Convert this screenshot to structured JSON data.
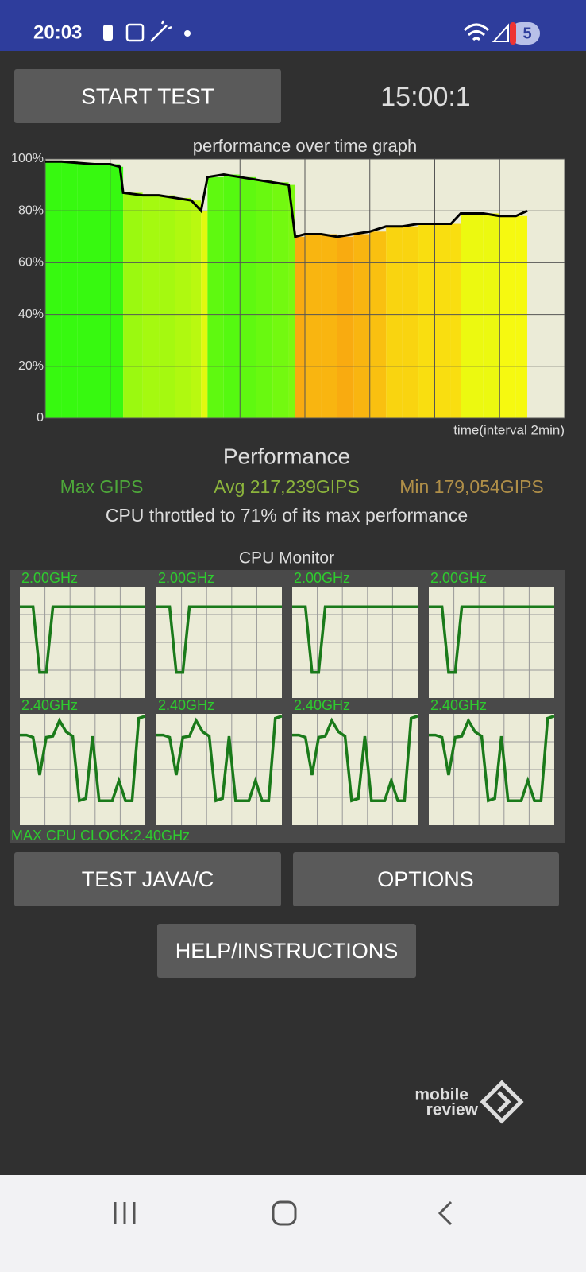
{
  "status_bar": {
    "time": "20:03",
    "badge": "5"
  },
  "buttons": {
    "start": "START TEST",
    "java": "TEST JAVA/C",
    "options": "OPTIONS",
    "help": "HELP/INSTRUCTIONS"
  },
  "timer": "15:00:1",
  "chart_data": {
    "type": "line",
    "title": "performance over time graph",
    "x_label": "time(interval 2min)",
    "x": [
      0,
      0.5,
      1,
      1.5,
      2,
      2.3,
      2.4,
      3,
      3.5,
      4,
      4.5,
      4.8,
      5,
      5.5,
      6,
      6.5,
      7,
      7.5,
      7.7,
      8,
      8.5,
      9,
      9.5,
      10,
      10.5,
      11,
      11.5,
      12,
      12.5,
      12.8,
      13.5,
      14,
      14.5,
      14.85
    ],
    "values": [
      99,
      99,
      98.5,
      98,
      98,
      97,
      87,
      86,
      86,
      85,
      84,
      80,
      93,
      94,
      93,
      92,
      91,
      90,
      70,
      71,
      71,
      70,
      71,
      72,
      74,
      74,
      75,
      75,
      75,
      79,
      79,
      78,
      78,
      80
    ],
    "xlim": [
      0,
      16
    ],
    "xticks": [
      0,
      2,
      4,
      6,
      8,
      10,
      12,
      14,
      16
    ],
    "ylim": [
      0,
      100
    ],
    "yticks": [
      0,
      {
        "value": 20,
        "label": "20%"
      },
      {
        "value": 40,
        "label": "40%"
      },
      {
        "value": 60,
        "label": "60%"
      },
      {
        "value": 80,
        "label": "80%"
      },
      {
        "value": 100,
        "label": "100%"
      }
    ],
    "grid": true,
    "color": "#000000"
  },
  "performance": {
    "title": "Performance",
    "max": "Max GIPS",
    "avg": "Avg 217,239GIPS",
    "min": "Min 179,054GIPS",
    "summary": "CPU throttled to 71% of its max performance"
  },
  "cpu_monitor": {
    "title": "CPU Monitor",
    "max_clock": "MAX CPU CLOCK:2.40GHz",
    "ylim": [
      0,
      100
    ],
    "color": "#1a7a1a",
    "cores": [
      {
        "label": "2.00GHz",
        "values": [
          82,
          82,
          82,
          23,
          23,
          82,
          82,
          82,
          82,
          82,
          82,
          82,
          82,
          82,
          82,
          82,
          82,
          82,
          82,
          82
        ]
      },
      {
        "label": "2.00GHz",
        "values": [
          82,
          82,
          82,
          23,
          23,
          82,
          82,
          82,
          82,
          82,
          82,
          82,
          82,
          82,
          82,
          82,
          82,
          82,
          82,
          82
        ]
      },
      {
        "label": "2.00GHz",
        "values": [
          82,
          82,
          82,
          23,
          23,
          82,
          82,
          82,
          82,
          82,
          82,
          82,
          82,
          82,
          82,
          82,
          82,
          82,
          82,
          82
        ]
      },
      {
        "label": "2.00GHz",
        "values": [
          82,
          82,
          82,
          23,
          23,
          82,
          82,
          82,
          82,
          82,
          82,
          82,
          82,
          82,
          82,
          82,
          82,
          82,
          82,
          82
        ]
      },
      {
        "label": "2.40GHz",
        "values": [
          81,
          81,
          79,
          45,
          79,
          80,
          94,
          84,
          80,
          22,
          24,
          80,
          22,
          22,
          22,
          40,
          22,
          22,
          96,
          98
        ]
      },
      {
        "label": "2.40GHz",
        "values": [
          81,
          81,
          79,
          45,
          79,
          80,
          94,
          84,
          80,
          22,
          24,
          80,
          22,
          22,
          22,
          40,
          22,
          22,
          96,
          98
        ]
      },
      {
        "label": "2.40GHz",
        "values": [
          81,
          81,
          79,
          45,
          79,
          80,
          94,
          84,
          80,
          22,
          24,
          80,
          22,
          22,
          22,
          40,
          22,
          22,
          96,
          98
        ]
      },
      {
        "label": "2.40GHz",
        "values": [
          81,
          81,
          79,
          45,
          79,
          80,
          94,
          84,
          80,
          22,
          24,
          80,
          22,
          22,
          22,
          40,
          22,
          22,
          96,
          98
        ]
      }
    ]
  },
  "watermark": {
    "line1": "mobile",
    "line2": "review"
  }
}
